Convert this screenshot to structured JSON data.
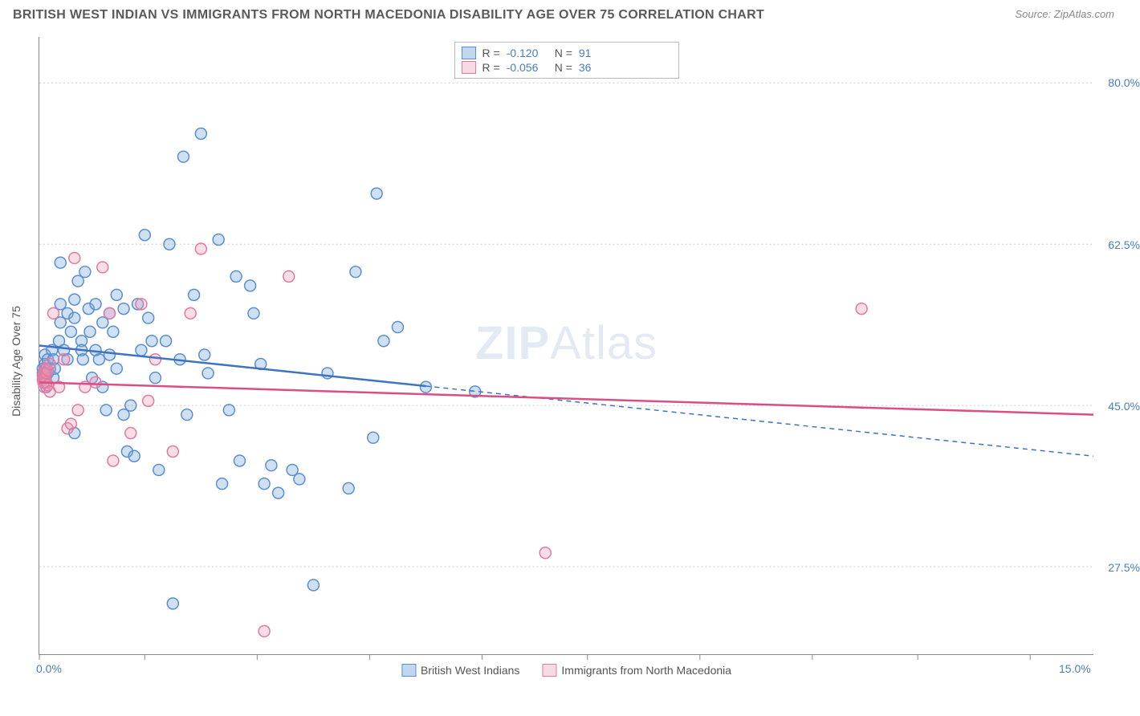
{
  "title": "BRITISH WEST INDIAN VS IMMIGRANTS FROM NORTH MACEDONIA DISABILITY AGE OVER 75 CORRELATION CHART",
  "source": "Source: ZipAtlas.com",
  "y_axis_label": "Disability Age Over 75",
  "watermark": {
    "bold": "ZIP",
    "rest": "Atlas"
  },
  "chart": {
    "type": "scatter",
    "xlim": [
      0,
      15
    ],
    "ylim": [
      18,
      85
    ],
    "x_ticks": [
      0,
      1.5,
      3.1,
      4.7,
      6.3,
      7.8,
      9.4,
      11.0,
      12.5,
      14.1
    ],
    "x_tick_labels": {
      "0": "0.0%",
      "15": "15.0%"
    },
    "y_gridlines": [
      27.5,
      45.0,
      62.5,
      80.0
    ],
    "y_tick_labels": [
      "27.5%",
      "45.0%",
      "62.5%",
      "80.0%"
    ],
    "background_color": "#ffffff",
    "grid_color": "#cccccc",
    "axis_color": "#888888",
    "label_color_blue": "#4a7ebc",
    "marker_radius": 7,
    "marker_stroke_width": 1.5,
    "series": [
      {
        "key": "bwi",
        "name": "British West Indians",
        "fill": "rgba(120,165,220,0.35)",
        "stroke": "#5a8fcf",
        "R": "-0.120",
        "N": "91",
        "regression": {
          "x1": 0,
          "y1": 51.5,
          "x2": 15,
          "y2": 39.5,
          "solid_until_x": 5.5,
          "color": "#3d73c0",
          "width": 2.5
        },
        "points": [
          [
            0.05,
            48.5
          ],
          [
            0.05,
            49.0
          ],
          [
            0.06,
            47.5
          ],
          [
            0.07,
            48.0
          ],
          [
            0.08,
            49.5
          ],
          [
            0.08,
            50.5
          ],
          [
            0.09,
            48.0
          ],
          [
            0.1,
            49.0
          ],
          [
            0.1,
            47.0
          ],
          [
            0.12,
            48.5
          ],
          [
            0.12,
            50.0
          ],
          [
            0.15,
            49.0
          ],
          [
            0.18,
            51.0
          ],
          [
            0.2,
            48.0
          ],
          [
            0.2,
            50.0
          ],
          [
            0.22,
            49.0
          ],
          [
            0.28,
            52.0
          ],
          [
            0.3,
            56.0
          ],
          [
            0.3,
            54.0
          ],
          [
            0.3,
            60.5
          ],
          [
            0.35,
            51.0
          ],
          [
            0.4,
            55.0
          ],
          [
            0.4,
            50.0
          ],
          [
            0.45,
            53.0
          ],
          [
            0.5,
            54.5
          ],
          [
            0.5,
            56.5
          ],
          [
            0.5,
            42.0
          ],
          [
            0.55,
            58.5
          ],
          [
            0.6,
            52.0
          ],
          [
            0.6,
            51.0
          ],
          [
            0.62,
            50.0
          ],
          [
            0.65,
            59.5
          ],
          [
            0.7,
            55.5
          ],
          [
            0.72,
            53.0
          ],
          [
            0.75,
            48.0
          ],
          [
            0.8,
            51.0
          ],
          [
            0.8,
            56.0
          ],
          [
            0.85,
            50.0
          ],
          [
            0.9,
            47.0
          ],
          [
            0.9,
            54.0
          ],
          [
            0.95,
            44.5
          ],
          [
            1.0,
            55.0
          ],
          [
            1.0,
            50.5
          ],
          [
            1.05,
            53.0
          ],
          [
            1.1,
            57.0
          ],
          [
            1.1,
            49.0
          ],
          [
            1.2,
            55.5
          ],
          [
            1.2,
            44.0
          ],
          [
            1.25,
            40.0
          ],
          [
            1.3,
            45.0
          ],
          [
            1.35,
            39.5
          ],
          [
            1.4,
            56.0
          ],
          [
            1.45,
            51.0
          ],
          [
            1.5,
            63.5
          ],
          [
            1.55,
            54.5
          ],
          [
            1.6,
            52.0
          ],
          [
            1.65,
            48.0
          ],
          [
            1.7,
            38.0
          ],
          [
            1.8,
            52.0
          ],
          [
            1.85,
            62.5
          ],
          [
            1.9,
            23.5
          ],
          [
            2.0,
            50.0
          ],
          [
            2.05,
            72.0
          ],
          [
            2.1,
            44.0
          ],
          [
            2.2,
            57.0
          ],
          [
            2.3,
            74.5
          ],
          [
            2.35,
            50.5
          ],
          [
            2.4,
            48.5
          ],
          [
            2.55,
            63.0
          ],
          [
            2.6,
            36.5
          ],
          [
            2.7,
            44.5
          ],
          [
            2.8,
            59.0
          ],
          [
            2.85,
            39.0
          ],
          [
            3.0,
            58.0
          ],
          [
            3.05,
            55.0
          ],
          [
            3.15,
            49.5
          ],
          [
            3.2,
            36.5
          ],
          [
            3.3,
            38.5
          ],
          [
            3.4,
            35.5
          ],
          [
            3.6,
            38.0
          ],
          [
            3.7,
            37.0
          ],
          [
            3.9,
            25.5
          ],
          [
            4.1,
            48.5
          ],
          [
            4.4,
            36.0
          ],
          [
            4.5,
            59.5
          ],
          [
            4.75,
            41.5
          ],
          [
            4.8,
            68.0
          ],
          [
            4.9,
            52.0
          ],
          [
            5.1,
            53.5
          ],
          [
            5.5,
            47.0
          ],
          [
            6.2,
            46.5
          ]
        ]
      },
      {
        "key": "nm",
        "name": "Immigrants from North Macedonia",
        "fill": "rgba(235,150,180,0.32)",
        "stroke": "#e27aa0",
        "R": "-0.056",
        "N": "36",
        "regression": {
          "x1": 0,
          "y1": 47.5,
          "x2": 15,
          "y2": 44.0,
          "solid_until_x": 15,
          "color": "#d94f85",
          "width": 2.5
        },
        "points": [
          [
            0.05,
            47.8
          ],
          [
            0.05,
            48.2
          ],
          [
            0.06,
            47.5
          ],
          [
            0.06,
            48.5
          ],
          [
            0.07,
            47.0
          ],
          [
            0.08,
            48.0
          ],
          [
            0.08,
            49.0
          ],
          [
            0.1,
            47.5
          ],
          [
            0.1,
            48.5
          ],
          [
            0.12,
            47.2
          ],
          [
            0.12,
            48.8
          ],
          [
            0.15,
            49.5
          ],
          [
            0.15,
            46.5
          ],
          [
            0.2,
            55.0
          ],
          [
            0.28,
            47.0
          ],
          [
            0.35,
            50.0
          ],
          [
            0.4,
            42.5
          ],
          [
            0.45,
            43.0
          ],
          [
            0.5,
            61.0
          ],
          [
            0.55,
            44.5
          ],
          [
            0.65,
            47.0
          ],
          [
            0.8,
            47.5
          ],
          [
            0.9,
            60.0
          ],
          [
            1.0,
            55.0
          ],
          [
            1.05,
            39.0
          ],
          [
            1.3,
            42.0
          ],
          [
            1.45,
            56.0
          ],
          [
            1.55,
            45.5
          ],
          [
            1.65,
            50.0
          ],
          [
            1.9,
            40.0
          ],
          [
            2.15,
            55.0
          ],
          [
            2.3,
            62.0
          ],
          [
            3.2,
            20.5
          ],
          [
            3.55,
            59.0
          ],
          [
            7.2,
            29.0
          ],
          [
            11.7,
            55.5
          ]
        ]
      }
    ]
  },
  "legend_bottom": [
    {
      "swatch": "blue",
      "label": "British West Indians"
    },
    {
      "swatch": "pink",
      "label": "Immigrants from North Macedonia"
    }
  ]
}
